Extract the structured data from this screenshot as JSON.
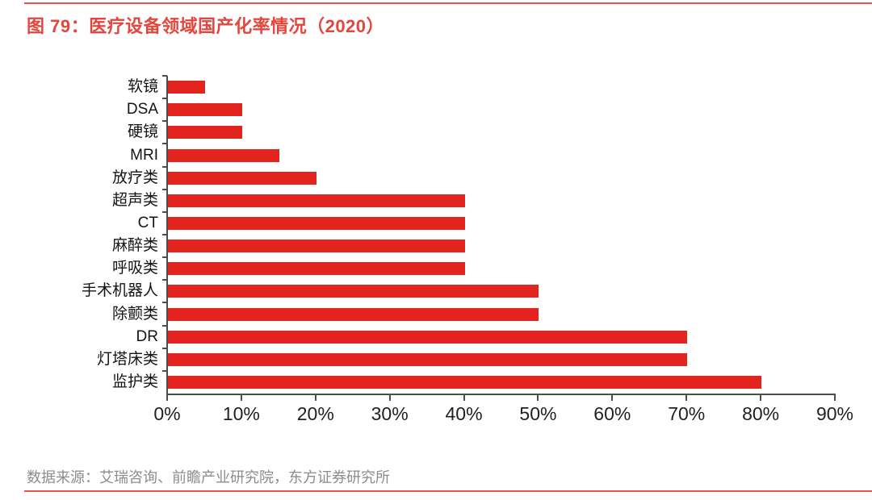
{
  "title": "图 79：医疗设备领域国产化率情况（2020）",
  "source": "数据来源：艾瑞咨询、前瞻产业研究院，东方证券研究所",
  "colors": {
    "bar": "#E2231E",
    "accent": "#E6453C",
    "rule": "#E4564E"
  },
  "chart_data": {
    "type": "bar",
    "orientation": "horizontal",
    "title": "医疗设备领域国产化率情况（2020）",
    "categories": [
      "软镜",
      "DSA",
      "硬镜",
      "MRI",
      "放疗类",
      "超声类",
      "CT",
      "麻醉类",
      "呼吸类",
      "手术机器人",
      "除颤类",
      "DR",
      "灯塔床类",
      "监护类"
    ],
    "values": [
      5,
      10,
      10,
      15,
      20,
      40,
      40,
      40,
      40,
      50,
      50,
      70,
      70,
      80
    ],
    "unit": "%",
    "xlim": [
      0,
      90
    ],
    "x_ticks": [
      "0%",
      "10%",
      "20%",
      "30%",
      "40%",
      "50%",
      "60%",
      "70%",
      "80%",
      "90%"
    ],
    "xlabel": "",
    "ylabel": "",
    "grid": false,
    "legend": false,
    "bar_direction": "left-to-right",
    "category_order": "top-to-bottom"
  }
}
